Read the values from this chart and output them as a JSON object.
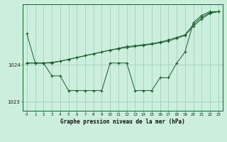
{
  "xlabel": "Graphe pression niveau de la mer (hPa)",
  "background_color": "#cceedd",
  "grid_color": "#99ccbb",
  "line_color": "#1a5c2a",
  "hours": [
    0,
    1,
    2,
    3,
    4,
    5,
    6,
    7,
    8,
    9,
    10,
    11,
    12,
    13,
    14,
    15,
    16,
    17,
    18,
    19,
    20,
    21,
    22,
    23
  ],
  "series1": [
    1024.85,
    1024.05,
    1024.05,
    1023.7,
    1023.7,
    1023.3,
    1023.3,
    1023.3,
    1023.3,
    1023.3,
    1024.05,
    1024.05,
    1024.05,
    1023.3,
    1023.3,
    1023.3,
    1023.65,
    1023.65,
    1024.05,
    1024.35,
    1025.15,
    1025.35,
    1025.45,
    1025.45
  ],
  "series2": [
    1024.05,
    1024.05,
    1024.05,
    1024.05,
    1024.1,
    1024.15,
    1024.2,
    1024.25,
    1024.3,
    1024.35,
    1024.4,
    1024.45,
    1024.5,
    1024.52,
    1024.55,
    1024.58,
    1024.62,
    1024.68,
    1024.75,
    1024.82,
    1025.1,
    1025.3,
    1025.42,
    1025.45
  ],
  "series3": [
    1024.05,
    1024.05,
    1024.05,
    1024.07,
    1024.1,
    1024.15,
    1024.2,
    1024.25,
    1024.3,
    1024.35,
    1024.4,
    1024.44,
    1024.47,
    1024.5,
    1024.53,
    1024.56,
    1024.6,
    1024.65,
    1024.72,
    1024.8,
    1025.05,
    1025.25,
    1025.4,
    1025.45
  ],
  "ylim": [
    1022.75,
    1025.65
  ],
  "yticks": [
    1023.0,
    1024.0
  ],
  "xticks": [
    0,
    1,
    2,
    3,
    4,
    5,
    6,
    7,
    8,
    9,
    10,
    11,
    12,
    13,
    14,
    15,
    16,
    17,
    18,
    19,
    20,
    21,
    22,
    23
  ]
}
